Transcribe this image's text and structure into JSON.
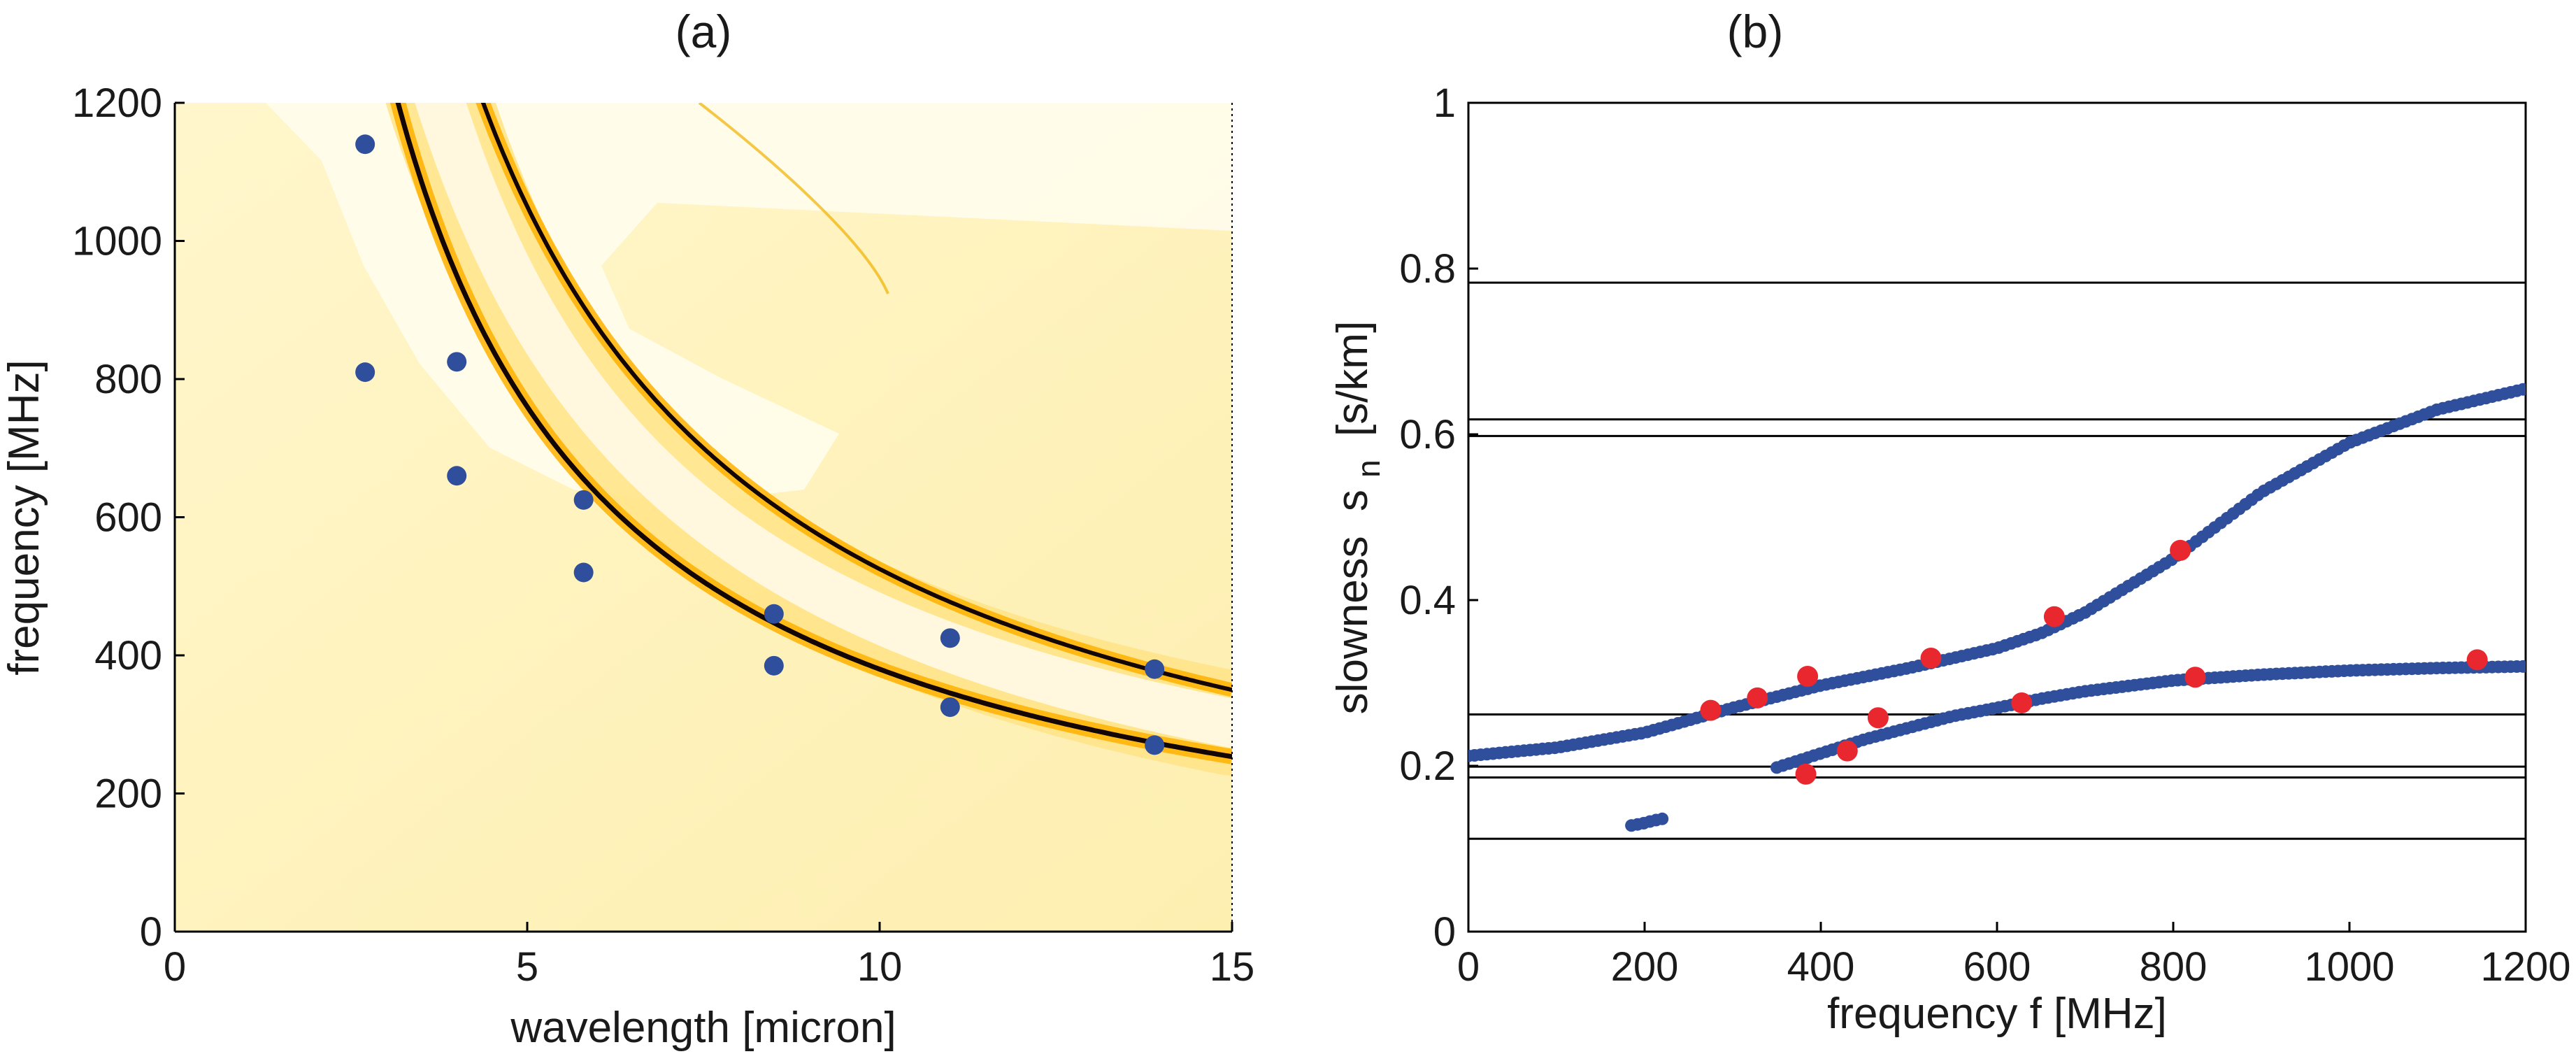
{
  "chart_data": [
    {
      "type": "heatmap",
      "title": "(a)",
      "xlabel": "wavelength [micron]",
      "ylabel": "frequency [MHz]",
      "xlim": [
        0,
        15
      ],
      "ylim": [
        0,
        1200
      ],
      "xticks": [
        "0",
        "5",
        "10",
        "15"
      ],
      "yticks": [
        "0",
        "200",
        "400",
        "600",
        "800",
        "1000",
        "1200"
      ],
      "curves": [
        {
          "name": "lower branch",
          "equation": "f = 3800 / wavelength"
        },
        {
          "name": "upper branch",
          "equation": "f = 5250 / wavelength"
        }
      ],
      "points": {
        "x": [
          2.7,
          2.7,
          4.0,
          4.0,
          5.8,
          5.8,
          8.5,
          8.5,
          11.0,
          11.0,
          13.9,
          13.9
        ],
        "y": [
          1140,
          810,
          825,
          660,
          625,
          520,
          460,
          385,
          425,
          325,
          380,
          270
        ]
      },
      "colors": {
        "points": "#2f4f9c",
        "curve": "#120606",
        "glow": "#ffb000"
      }
    },
    {
      "type": "scatter",
      "title": "(b)",
      "xlabel": "frequency f [MHz]",
      "ylabel": "slowness",
      "ylabel_symbol": "s",
      "ylabel_sub": "n",
      "ylabel_units": "[s/km]",
      "xlim": [
        0,
        1200
      ],
      "ylim": [
        0,
        1
      ],
      "xticks": [
        "0",
        "200",
        "400",
        "600",
        "800",
        "1000",
        "1200"
      ],
      "yticks": [
        "0",
        "0.2",
        "0.4",
        "0.6",
        "0.8",
        "1"
      ],
      "hlines": [
        0.783,
        0.618,
        0.598,
        0.262,
        0.199,
        0.186,
        0.112
      ],
      "series": [
        {
          "name": "mode 1",
          "x": [
            0,
            100,
            200,
            300,
            400,
            500,
            600,
            650,
            700,
            800,
            900,
            1000,
            1100,
            1200
          ],
          "y": [
            0.212,
            0.222,
            0.24,
            0.27,
            0.297,
            0.318,
            0.342,
            0.36,
            0.385,
            0.45,
            0.53,
            0.59,
            0.63,
            0.655
          ]
        },
        {
          "name": "mode 2",
          "x": [
            350,
            400,
            450,
            500,
            550,
            600,
            650,
            700,
            800,
            900,
            1000,
            1100,
            1200
          ],
          "y": [
            0.198,
            0.215,
            0.232,
            0.246,
            0.26,
            0.27,
            0.281,
            0.29,
            0.303,
            0.31,
            0.315,
            0.318,
            0.32
          ]
        },
        {
          "name": "fragment",
          "x": [
            185,
            200,
            210,
            225
          ],
          "y": [
            0.128,
            0.131,
            0.134,
            0.137
          ]
        }
      ],
      "red_points": {
        "x": [
          275,
          328,
          385,
          525,
          665,
          808,
          1145,
          383,
          430,
          465,
          628,
          825
        ],
        "y": [
          0.267,
          0.282,
          0.308,
          0.33,
          0.38,
          0.46,
          0.328,
          0.19,
          0.218,
          0.258,
          0.276,
          0.307
        ]
      },
      "colors": {
        "series": "#2f4f9c",
        "red": "#e8282e",
        "hline": "#000000"
      }
    }
  ]
}
